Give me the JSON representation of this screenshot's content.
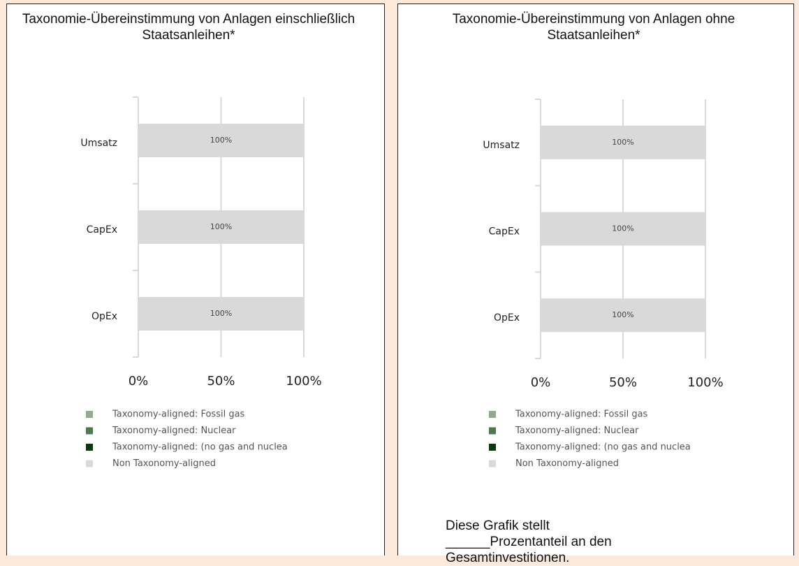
{
  "chart_data": [
    {
      "type": "stacked-barh",
      "title": "Taxonomie-Übereinstimmung von Anlagen einschließlich Staatsanleihen*",
      "categories": [
        "Umsatz",
        "CapEx",
        "OpEx"
      ],
      "series": [
        {
          "name": "Taxonomy-aligned: Fossil gas",
          "color": "#8faa8c",
          "values": [
            0,
            0,
            0
          ]
        },
        {
          "name": "Taxonomy-aligned: Nuclear",
          "color": "#4e7a53",
          "values": [
            0,
            0,
            0
          ]
        },
        {
          "name": "Taxonomy-aligned: (no gas and nuclea",
          "color": "#0b3a10",
          "values": [
            0,
            0,
            0
          ]
        },
        {
          "name": "Non Taxonomy-aligned",
          "color": "#d9d9d9",
          "values": [
            100,
            100,
            100
          ],
          "value_labels": [
            "100%",
            "100%",
            "100%"
          ]
        }
      ],
      "xlim": [
        0,
        100
      ],
      "xticks": [
        {
          "value": 0,
          "label": "0%"
        },
        {
          "value": 50,
          "label": "50%"
        },
        {
          "value": 100,
          "label": "100%"
        }
      ],
      "grid": true
    },
    {
      "type": "stacked-barh",
      "title": "Taxonomie-Übereinstimmung von Anlagen ohne Staatsanleihen*",
      "categories": [
        "Umsatz",
        "CapEx",
        "OpEx"
      ],
      "series": [
        {
          "name": "Taxonomy-aligned: Fossil gas",
          "color": "#8faa8c",
          "values": [
            0,
            0,
            0
          ]
        },
        {
          "name": "Taxonomy-aligned: Nuclear",
          "color": "#4e7a53",
          "values": [
            0,
            0,
            0
          ]
        },
        {
          "name": "Taxonomy-aligned: (no gas and nuclea",
          "color": "#0b3a10",
          "values": [
            0,
            0,
            0
          ]
        },
        {
          "name": "Non Taxonomy-aligned",
          "color": "#d9d9d9",
          "values": [
            100,
            100,
            100
          ],
          "value_labels": [
            "100%",
            "100%",
            "100%"
          ]
        }
      ],
      "xlim": [
        0,
        100
      ],
      "xticks": [
        {
          "value": 0,
          "label": "0%"
        },
        {
          "value": 50,
          "label": "50%"
        },
        {
          "value": 100,
          "label": "100%"
        }
      ],
      "grid": true,
      "annotation": "Diese Grafik stellt ______Prozentanteil an den Gesamtinvestitionen."
    }
  ]
}
